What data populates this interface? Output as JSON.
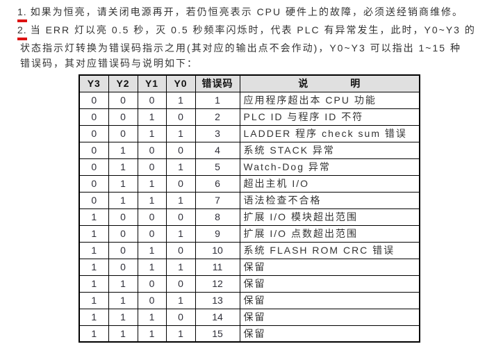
{
  "page": {
    "colors": {
      "accent_red": "#dd1212",
      "header_bg": "#e0e0e0",
      "border": "#000000",
      "text": "#333333"
    }
  },
  "intro": {
    "items": [
      {
        "number": "1.",
        "lines": [
          "如果为恒亮，请关闭电源再开，若仍恒亮表示 CPU 硬件上的故障，必须送经销商维修。"
        ]
      },
      {
        "number": "2.",
        "lines": [
          "当 ERR 灯以亮 0.5 秒，灭 0.5 秒频率闪烁时，代表 PLC 有异常发生，此时，Y0~Y3 的",
          "状态指示灯转换为错误码指示之用(其对应的输出点不会作动)，Y0~Y3 可以指出 1~15 种",
          "错误码，其对应错误码与说明如下："
        ]
      }
    ]
  },
  "table": {
    "headers": [
      "Y3",
      "Y2",
      "Y1",
      "Y0",
      "错误码",
      "说　　　　明"
    ],
    "rows": [
      [
        "0",
        "0",
        "0",
        "1",
        "1",
        "应用程序超出本 CPU 功能"
      ],
      [
        "0",
        "0",
        "1",
        "0",
        "2",
        "PLC ID 与程序 ID 不符"
      ],
      [
        "0",
        "0",
        "1",
        "1",
        "3",
        "LADDER 程序 check sum 错误"
      ],
      [
        "0",
        "1",
        "0",
        "0",
        "4",
        "系统 STACK 异常"
      ],
      [
        "0",
        "1",
        "0",
        "1",
        "5",
        "Watch-Dog 异常"
      ],
      [
        "0",
        "1",
        "1",
        "0",
        "6",
        "超出主机 I/O"
      ],
      [
        "0",
        "1",
        "1",
        "1",
        "7",
        "语法检查不合格"
      ],
      [
        "1",
        "0",
        "0",
        "0",
        "8",
        "扩展 I/O 模块超出范围"
      ],
      [
        "1",
        "0",
        "0",
        "1",
        "9",
        "扩展 I/O 点数超出范围"
      ],
      [
        "1",
        "0",
        "1",
        "0",
        "10",
        "系统 FLASH ROM CRC 错误"
      ],
      [
        "1",
        "0",
        "1",
        "1",
        "11",
        "保留"
      ],
      [
        "1",
        "1",
        "0",
        "0",
        "12",
        "保留"
      ],
      [
        "1",
        "1",
        "0",
        "1",
        "13",
        "保留"
      ],
      [
        "1",
        "1",
        "1",
        "0",
        "14",
        "保留"
      ],
      [
        "1",
        "1",
        "1",
        "1",
        "15",
        "保留"
      ]
    ]
  }
}
